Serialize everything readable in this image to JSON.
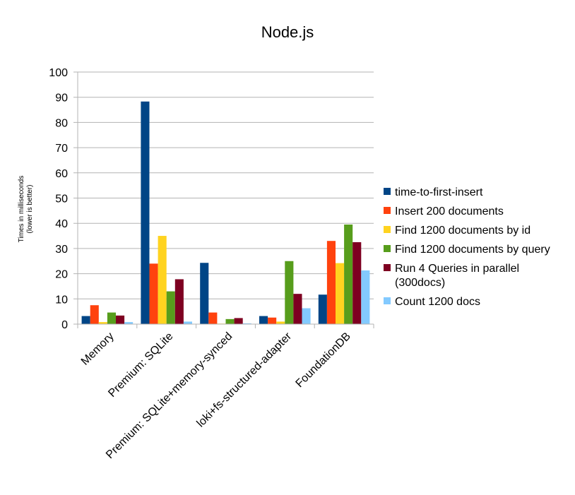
{
  "chart_data": {
    "type": "bar",
    "title": "Node.js",
    "ylabel_line1": "Times in milliseconds",
    "ylabel_line2": "(lower is better)",
    "ylim": [
      0,
      100
    ],
    "yticks": [
      "0",
      "10",
      "20",
      "30",
      "40",
      "50",
      "60",
      "70",
      "80",
      "90",
      "100"
    ],
    "grid": true,
    "legend_position": "right",
    "categories": [
      "Memory",
      "Premium: SQLite",
      "Premium: SQLite+memory-synced",
      "loki+fs-structured-adapter",
      "FoundationDB"
    ],
    "series": [
      {
        "name": "time-to-first-insert",
        "name_lines": [
          "time-to-first-insert"
        ],
        "color": "#004586",
        "values": [
          3.2,
          88.3,
          24.3,
          3.2,
          11.7
        ]
      },
      {
        "name": "Insert 200 documents",
        "name_lines": [
          "Insert 200 documents"
        ],
        "color": "#ff420e",
        "values": [
          7.5,
          24.0,
          4.6,
          2.6,
          33.0
        ]
      },
      {
        "name": "Find 1200 documents by id",
        "name_lines": [
          "Find 1200 documents by id"
        ],
        "color": "#ffd320",
        "values": [
          0.8,
          35.0,
          0.2,
          1.0,
          24.2
        ]
      },
      {
        "name": "Find 1200 documents by query",
        "name_lines": [
          "Find 1200 documents by query"
        ],
        "color": "#579d1c",
        "values": [
          4.6,
          13.0,
          2.0,
          25.0,
          39.5
        ]
      },
      {
        "name": "Run 4 Queries in parallel (300docs)",
        "name_lines": [
          "Run 4 Queries in parallel",
          "(300docs)"
        ],
        "color": "#7e0021",
        "values": [
          3.4,
          17.8,
          2.4,
          12.0,
          32.5
        ]
      },
      {
        "name": "Count 1200 docs",
        "name_lines": [
          "Count 1200 docs"
        ],
        "color": "#83caff",
        "values": [
          0.8,
          1.0,
          0.3,
          6.3,
          21.3
        ]
      }
    ]
  }
}
